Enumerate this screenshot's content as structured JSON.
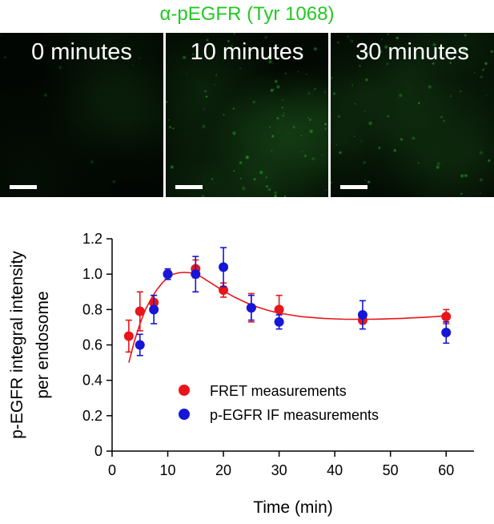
{
  "figure": {
    "title": "α-pEGFR (Tyr 1068)",
    "panels": [
      {
        "label": "0 minutes",
        "signal": 0.12
      },
      {
        "label": "10 minutes",
        "signal": 0.85
      },
      {
        "label": "30 minutes",
        "signal": 0.7
      }
    ]
  },
  "colors": {
    "title_green": "#22c922",
    "fret": "#e8161a",
    "if": "#1616d8",
    "fit": "#e8161a",
    "axis": "#000000"
  },
  "chart_data": {
    "type": "scatter",
    "title": "",
    "xlabel": "Time (min)",
    "ylabel": "p-EGFR integral intensity per endosome",
    "xlim": [
      0,
      65
    ],
    "ylim": [
      0,
      1.2
    ],
    "xticks": [
      0,
      10,
      20,
      30,
      40,
      50,
      60
    ],
    "yticks": [
      0,
      0.2,
      0.4,
      0.6,
      0.8,
      1.0,
      1.2
    ],
    "ytick_labels": [
      "0",
      "0.2",
      "0.4",
      "0.6",
      "0.8",
      "1.0",
      "1.2"
    ],
    "legend_position": "center",
    "series": [
      {
        "name": "FRET measurements",
        "x": [
          3,
          5,
          7.5,
          10,
          15,
          20,
          25,
          30,
          45,
          60
        ],
        "y": [
          0.65,
          0.79,
          0.84,
          1.0,
          1.03,
          0.91,
          0.81,
          0.8,
          0.74,
          0.76
        ],
        "err": [
          0.09,
          0.11,
          0.04,
          0.02,
          0.05,
          0.04,
          0.08,
          0.08,
          0.02,
          0.04
        ]
      },
      {
        "name": "p-EGFR IF measurements",
        "x": [
          5,
          7.5,
          10,
          15,
          20,
          25,
          30,
          45,
          60
        ],
        "y": [
          0.6,
          0.8,
          1.0,
          1.0,
          1.04,
          0.81,
          0.73,
          0.77,
          0.67
        ],
        "err": [
          0.06,
          0.08,
          0.03,
          0.1,
          0.11,
          0.07,
          0.04,
          0.08,
          0.06
        ]
      }
    ],
    "fit": {
      "x": [
        3,
        4,
        5,
        6,
        7,
        8,
        9,
        10,
        11,
        12,
        13,
        14,
        15,
        16,
        17,
        18,
        19,
        20,
        22,
        24,
        26,
        28,
        30,
        32,
        34,
        36,
        38,
        40,
        42,
        44,
        46,
        48,
        50,
        52,
        54,
        56,
        58,
        60
      ],
      "y": [
        0.5,
        0.62,
        0.72,
        0.8,
        0.86,
        0.91,
        0.95,
        0.98,
        1.0,
        1.008,
        1.01,
        1.008,
        1.0,
        0.985,
        0.965,
        0.945,
        0.925,
        0.905,
        0.87,
        0.84,
        0.815,
        0.795,
        0.78,
        0.77,
        0.76,
        0.755,
        0.75,
        0.747,
        0.745,
        0.745,
        0.745,
        0.746,
        0.748,
        0.75,
        0.753,
        0.756,
        0.76,
        0.765
      ]
    }
  }
}
